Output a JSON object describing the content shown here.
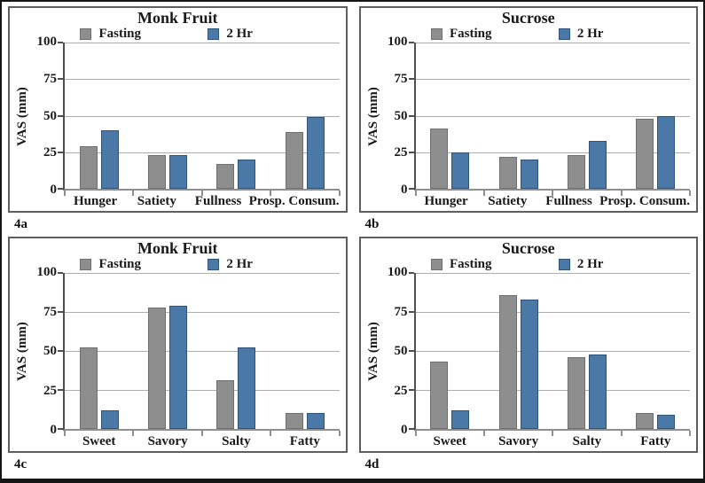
{
  "figure": {
    "ylabel": "VAS (mm)",
    "yticks": [
      100,
      75,
      50,
      25,
      0
    ],
    "ylim": [
      0,
      100
    ],
    "grid": "horizontal",
    "legend_position": "top-inside",
    "colors": {
      "fasting_fill": "#8e8e8e",
      "fasting_border": "#6f6f6f",
      "two_hr_fill": "#4a79a8",
      "two_hr_border": "#2f5379",
      "gridline": "#aeaeae",
      "y_axis": "#4f4f4f",
      "x_axis": "#8f8f8f"
    }
  },
  "chart_data": [
    {
      "type": "bar",
      "title": "Monk Fruit",
      "caption": "4a",
      "ylabel": "VAS (mm)",
      "ylim": [
        0,
        100
      ],
      "categories": [
        "Hunger",
        "Satiety",
        "Fullness",
        "Prosp. Consum."
      ],
      "series": [
        {
          "name": "Fasting",
          "color": "#8e8e8e",
          "values": [
            29,
            23,
            17,
            39
          ]
        },
        {
          "name": "2 Hr",
          "color": "#4a79a8",
          "values": [
            40,
            23,
            20,
            49
          ]
        }
      ]
    },
    {
      "type": "bar",
      "title": "Sucrose",
      "caption": "4b",
      "ylabel": "VAS (mm)",
      "ylim": [
        0,
        100
      ],
      "categories": [
        "Hunger",
        "Satiety",
        "Fullness",
        "Prosp. Consum."
      ],
      "series": [
        {
          "name": "Fasting",
          "color": "#8e8e8e",
          "values": [
            41,
            22,
            23,
            48
          ]
        },
        {
          "name": "2 Hr",
          "color": "#4a79a8",
          "values": [
            25,
            20,
            33,
            50
          ]
        }
      ]
    },
    {
      "type": "bar",
      "title": "Monk Fruit",
      "caption": "4c",
      "ylabel": "VAS (mm)",
      "ylim": [
        0,
        100
      ],
      "categories": [
        "Sweet",
        "Savory",
        "Salty",
        "Fatty"
      ],
      "series": [
        {
          "name": "Fasting",
          "color": "#8e8e8e",
          "values": [
            52,
            78,
            31,
            10
          ]
        },
        {
          "name": "2 Hr",
          "color": "#4a79a8",
          "values": [
            12,
            79,
            52,
            10
          ]
        }
      ]
    },
    {
      "type": "bar",
      "title": "Sucrose",
      "caption": "4d",
      "ylabel": "VAS (mm)",
      "ylim": [
        0,
        100
      ],
      "categories": [
        "Sweet",
        "Savory",
        "Salty",
        "Fatty"
      ],
      "series": [
        {
          "name": "Fasting",
          "color": "#8e8e8e",
          "values": [
            43,
            86,
            46,
            10
          ]
        },
        {
          "name": "2 Hr",
          "color": "#4a79a8",
          "values": [
            12,
            83,
            48,
            9
          ]
        }
      ]
    }
  ]
}
